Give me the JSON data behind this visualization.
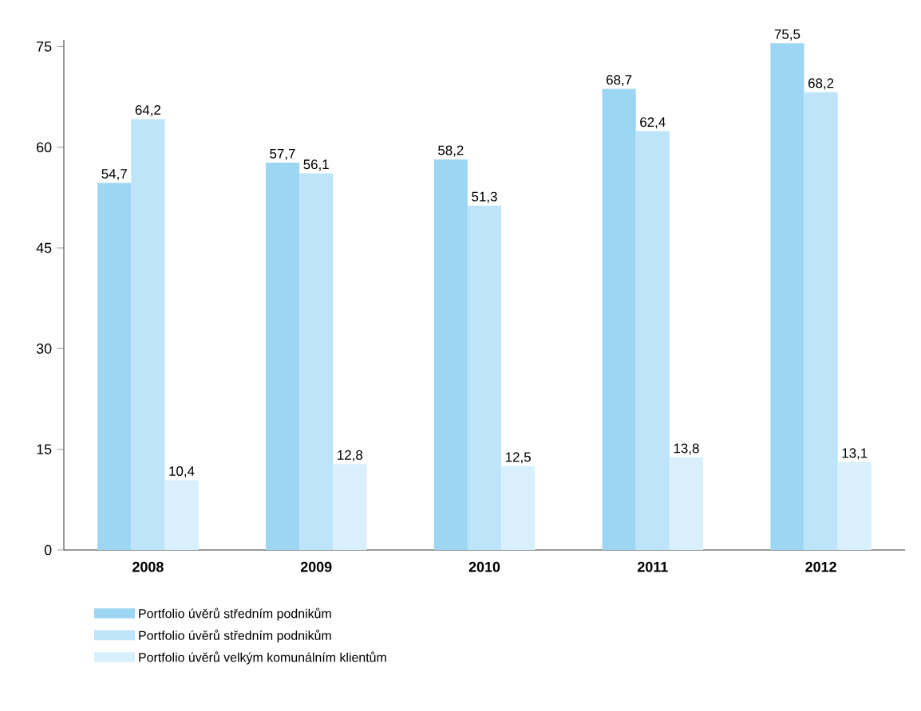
{
  "chart_data": {
    "type": "bar",
    "categories": [
      "2008",
      "2009",
      "2010",
      "2011",
      "2012"
    ],
    "series": [
      {
        "name": "Portfolio úvěrů středním podnikům",
        "color": "#9dd6f3",
        "values": [
          54.7,
          57.7,
          58.2,
          68.7,
          75.5
        ],
        "value_labels": [
          "54,7",
          "57,7",
          "58,2",
          "68,7",
          "75,5"
        ]
      },
      {
        "name": "Portfolio úvěrů středním podnikům",
        "color": "#bde4f9",
        "values": [
          64.2,
          56.1,
          51.3,
          62.4,
          68.2
        ],
        "value_labels": [
          "64,2",
          "56,1",
          "51,3",
          "62,4",
          "68,2"
        ]
      },
      {
        "name": "Portfolio úvěrů velkým komunálním klientům",
        "color": "#d9f0fc",
        "values": [
          10.4,
          12.8,
          12.5,
          13.8,
          13.1
        ],
        "value_labels": [
          "10,4",
          "12,8",
          "12,5",
          "13,8",
          "13,1"
        ]
      }
    ],
    "ylim": [
      0,
      76
    ],
    "yticks": [
      0,
      15,
      30,
      45,
      60,
      75
    ],
    "grid": false,
    "legend": "bottom"
  }
}
